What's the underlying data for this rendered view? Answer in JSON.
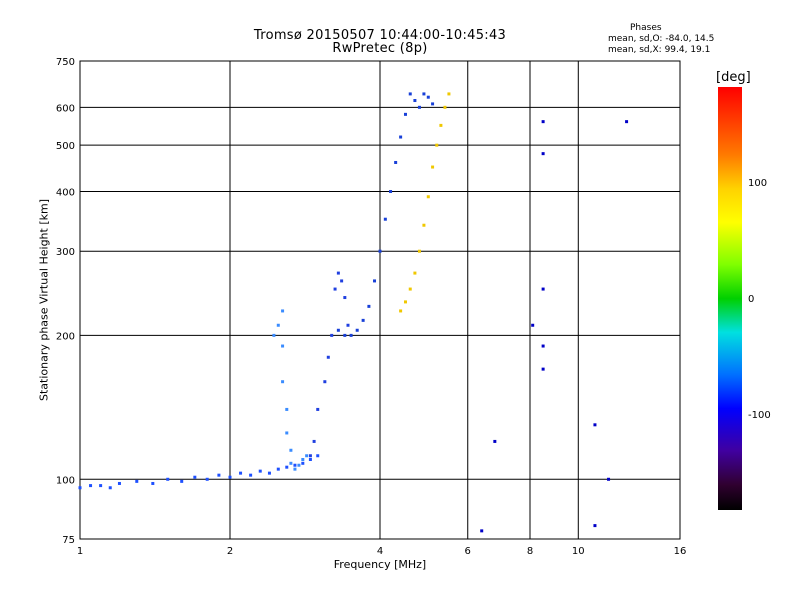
{
  "header": {
    "title_line1": "Tromsø 20150507 10:44:00-10:45:43",
    "title_line2": "RwPretec (8p)",
    "stats_title": "Phases",
    "stats_o": "mean, sd,O: -84.0, 14.5",
    "stats_x": "mean, sd,X:  99.4, 19.1"
  },
  "colorbar": {
    "unit": "[deg]",
    "ticks": [
      "100",
      "0",
      "-100"
    ]
  },
  "chart_data": {
    "type": "scatter",
    "xlabel": "Frequency [MHz]",
    "ylabel": "Stationary phase Virtual Height [km]",
    "xscale": "log",
    "yscale": "log",
    "xlim": [
      1,
      16
    ],
    "ylim": [
      75,
      750
    ],
    "x_ticks": [
      1,
      2,
      4,
      6,
      8,
      10,
      16
    ],
    "y_ticks": [
      75,
      100,
      200,
      300,
      400,
      500,
      600,
      750
    ],
    "grid": true,
    "series": [
      {
        "color": "#1e50ff",
        "phase": -100,
        "x": [
          1.0,
          1.05,
          1.1,
          1.15,
          1.2,
          1.3,
          1.4,
          1.5,
          1.6,
          1.7,
          1.8,
          1.9,
          2.0,
          2.1,
          2.2,
          2.3,
          2.4,
          2.5,
          2.6,
          2.7,
          2.8,
          2.9,
          3.0
        ],
        "y": [
          96,
          97,
          97,
          96,
          98,
          99,
          98,
          100,
          99,
          101,
          100,
          102,
          101,
          103,
          102,
          104,
          103,
          105,
          106,
          107,
          108,
          110,
          112
        ]
      },
      {
        "color": "#3a8cff",
        "phase": -110,
        "x": [
          2.45,
          2.5,
          2.55,
          2.55,
          2.55,
          2.6,
          2.6,
          2.65,
          2.65,
          2.7,
          2.75,
          2.8,
          2.85
        ],
        "y": [
          200,
          210,
          225,
          190,
          160,
          140,
          125,
          115,
          108,
          105,
          107,
          110,
          112
        ]
      },
      {
        "color": "#2040e0",
        "phase": -95,
        "x": [
          2.9,
          2.95,
          3.0,
          3.1,
          3.15,
          3.2,
          3.25,
          3.3,
          3.35,
          3.4,
          3.45
        ],
        "y": [
          112,
          120,
          140,
          160,
          180,
          200,
          250,
          270,
          260,
          240,
          210
        ]
      },
      {
        "color": "#1840d8",
        "phase": -105,
        "x": [
          3.3,
          3.4,
          3.5,
          3.6,
          3.7,
          3.8,
          3.9,
          4.0,
          4.1,
          4.2,
          4.3,
          4.4,
          4.5,
          4.6,
          4.7,
          4.8,
          4.9,
          5.0,
          5.1
        ],
        "y": [
          205,
          200,
          200,
          205,
          215,
          230,
          260,
          300,
          350,
          400,
          460,
          520,
          580,
          640,
          620,
          600,
          640,
          630,
          610
        ]
      },
      {
        "color": "#f0c800",
        "phase": 105,
        "x": [
          4.4,
          4.5,
          4.6,
          4.7,
          4.8,
          4.9,
          5.0,
          5.1,
          5.2,
          5.3,
          5.4,
          5.5
        ],
        "y": [
          225,
          235,
          250,
          270,
          300,
          340,
          390,
          450,
          500,
          550,
          600,
          640
        ]
      },
      {
        "color": "#0000c8",
        "phase": -120,
        "x": [
          6.4,
          6.8,
          8.1,
          8.5,
          8.5,
          8.5,
          8.5,
          8.5,
          10.8,
          10.8,
          11.5,
          12.5
        ],
        "y": [
          78,
          120,
          210,
          560,
          480,
          250,
          190,
          170,
          130,
          80,
          100,
          560
        ]
      }
    ]
  }
}
